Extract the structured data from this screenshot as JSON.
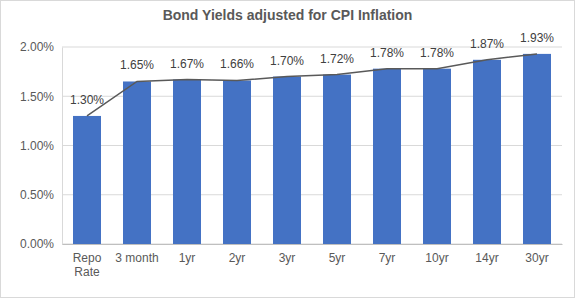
{
  "chart_data": {
    "type": "bar",
    "title": "Bond Yields adjusted for CPI Inflation",
    "categories": [
      "Repo Rate",
      "3 month",
      "1yr",
      "2yr",
      "3yr",
      "5yr",
      "7yr",
      "10yr",
      "14yr",
      "30yr"
    ],
    "series": [
      {
        "type": "bar",
        "color": "#4472c4",
        "values": [
          1.3,
          1.65,
          1.67,
          1.66,
          1.7,
          1.72,
          1.78,
          1.78,
          1.87,
          1.93
        ],
        "value_labels": [
          "1.30%",
          "1.65%",
          "1.67%",
          "1.66%",
          "1.70%",
          "1.72%",
          "1.78%",
          "1.78%",
          "1.87%",
          "1.93%"
        ]
      },
      {
        "type": "line",
        "color": "#595959",
        "values": [
          1.3,
          1.65,
          1.67,
          1.66,
          1.7,
          1.72,
          1.78,
          1.78,
          1.87,
          1.93
        ]
      }
    ],
    "ylim": [
      0,
      2
    ],
    "yticks": [
      {
        "value": 0,
        "label": "0.00%"
      },
      {
        "value": 0.5,
        "label": "0.50%"
      },
      {
        "value": 1,
        "label": "1.00%"
      },
      {
        "value": 1.5,
        "label": "1.50%"
      },
      {
        "value": 2,
        "label": "2.00%"
      }
    ],
    "grid": true,
    "data_labels": true
  }
}
